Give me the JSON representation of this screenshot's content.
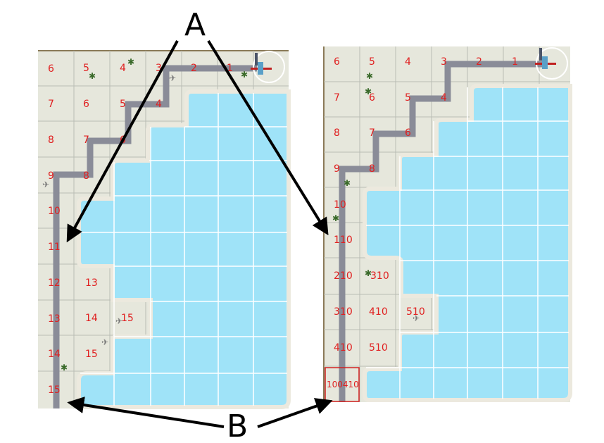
{
  "colors": {
    "ground": "#e6e7dc",
    "grid_line": "#b9bcb4",
    "water": "#9fe3f8",
    "water_grid": "#ffffff",
    "shore": "#ece9de",
    "path": "#8a8c98",
    "number": "#e02020",
    "arrow": "#000000",
    "highlight_box": "#d02020",
    "map_edge": "#8a7a58"
  },
  "icons": {
    "plant": "plant-icon",
    "bird": "bird-icon",
    "start_marker": "start-marker-icon"
  },
  "callouts": {
    "a": "A",
    "b": "B"
  },
  "left_map": {
    "labels": [
      "6",
      "5",
      "4",
      "3",
      "2",
      "1",
      "7",
      "6",
      "5",
      "4",
      "8",
      "7",
      "6",
      "9",
      "8",
      "10",
      "11",
      "12",
      "13",
      "13",
      "14",
      "15",
      "14",
      "15",
      "15"
    ]
  },
  "right_map": {
    "labels": [
      "6",
      "5",
      "4",
      "3",
      "2",
      "1",
      "7",
      "6",
      "5",
      "4",
      "8",
      "7",
      "6",
      "9",
      "8",
      "10",
      "110",
      "210",
      "310",
      "310",
      "410",
      "510",
      "410",
      "510",
      "100410"
    ]
  }
}
